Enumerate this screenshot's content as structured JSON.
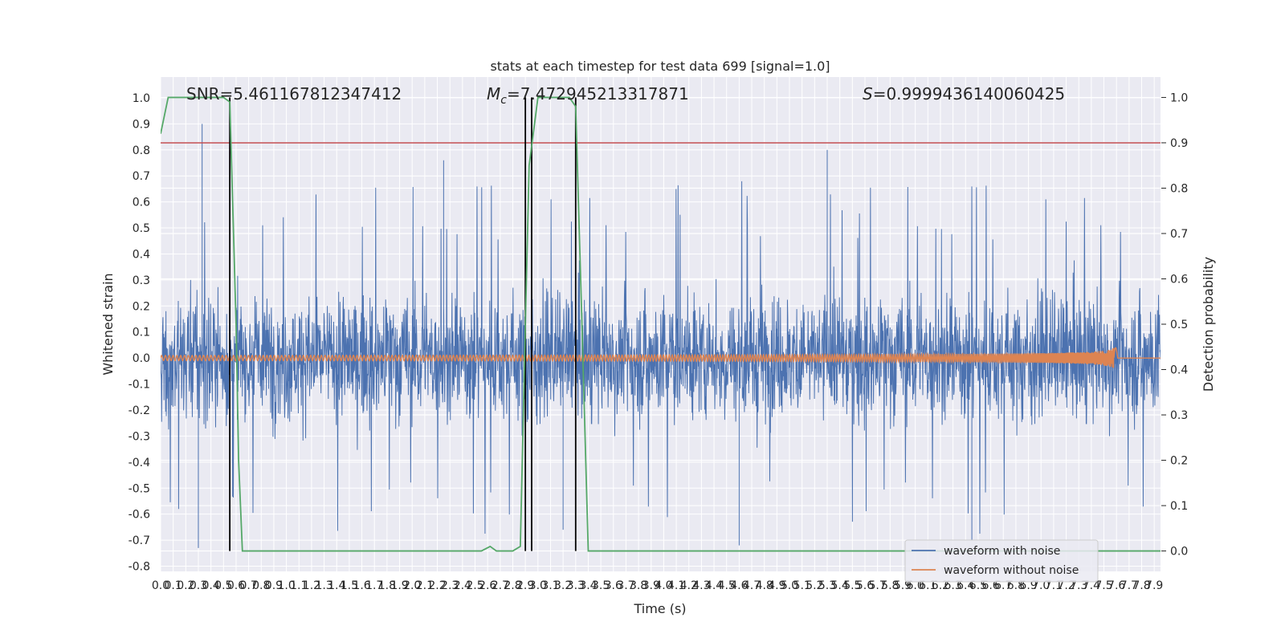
{
  "chart_data": {
    "type": "line",
    "title": "stats at each timestep for test data 699 [signal=1.0]",
    "xlabel": "Time (s)",
    "ylabel": "Whitened strain",
    "y2label": "Detection probability",
    "xlim": [
      0.0,
      7.95
    ],
    "ylim": [
      -0.82,
      1.08
    ],
    "y2lim": [
      -0.045,
      1.045
    ],
    "xticks": [
      "0.0",
      "0.1",
      "0.2",
      "0.3",
      "0.4",
      "0.5",
      "0.6",
      "0.7",
      "0.8",
      "0.9",
      "1.0",
      "1.1",
      "1.2",
      "1.3",
      "1.4",
      "1.5",
      "1.6",
      "1.7",
      "1.8",
      "1.9",
      "2.0",
      "2.1",
      "2.2",
      "2.3",
      "2.4",
      "2.5",
      "2.6",
      "2.7",
      "2.8",
      "2.9",
      "3.0",
      "3.1",
      "3.2",
      "3.3",
      "3.4",
      "3.5",
      "3.6",
      "3.7",
      "3.8",
      "3.9",
      "4.0",
      "4.1",
      "4.2",
      "4.3",
      "4.4",
      "4.5",
      "4.6",
      "4.7",
      "4.8",
      "4.9",
      "5.0",
      "5.1",
      "5.2",
      "5.3",
      "5.4",
      "5.5",
      "5.6",
      "5.7",
      "5.8",
      "5.9",
      "6.0",
      "6.1",
      "6.2",
      "6.3",
      "6.4",
      "6.5",
      "6.6",
      "6.7",
      "6.8",
      "6.9",
      "7.0",
      "7.1",
      "7.2",
      "7.3",
      "7.4",
      "7.5",
      "7.6",
      "7.7",
      "7.8",
      "7.9"
    ],
    "yticks": [
      "-0.8",
      "-0.7",
      "-0.6",
      "-0.5",
      "-0.4",
      "-0.3",
      "-0.2",
      "-0.1",
      "0.0",
      "0.1",
      "0.2",
      "0.3",
      "0.4",
      "0.5",
      "0.6",
      "0.7",
      "0.8",
      "0.9",
      "1.0"
    ],
    "y2ticks": [
      "0.0",
      "0.1",
      "0.2",
      "0.3",
      "0.4",
      "0.5",
      "0.6",
      "0.7",
      "0.8",
      "0.9",
      "1.0"
    ],
    "grid": true,
    "legend_position": "lower-right",
    "annotations": {
      "snr": "SNR=5.461167812347412",
      "mc_symbol": "M",
      "mc_sub": "c",
      "mc_value": "=7.472945213317871",
      "s_symbol": "S",
      "s_value": "=0.9999436140060425"
    },
    "threshold_y2": 0.9,
    "vlines_x": [
      0.55,
      2.9,
      2.95,
      3.3
    ],
    "series": [
      {
        "name": "waveform with noise",
        "color": "#4c72b0",
        "description_envelope": {
          "typical_abs": 0.3,
          "spike_max": 0.9,
          "spike_min": -0.74
        }
      },
      {
        "name": "waveform without noise",
        "color": "#dd8452",
        "chirp": {
          "start_amp": 0.01,
          "peak_amp": 0.1,
          "peak_t": 7.58,
          "end_t": 7.95
        }
      },
      {
        "name": "",
        "color": "#55a868",
        "axis": "y2",
        "x": [
          0.0,
          0.06,
          0.1,
          0.2,
          0.3,
          0.5,
          0.55,
          0.6,
          0.62,
          0.65,
          0.7,
          1.0,
          2.0,
          2.5,
          2.55,
          2.62,
          2.67,
          2.72,
          2.8,
          2.86,
          2.9,
          2.93,
          3.0,
          3.05,
          3.1,
          3.2,
          3.25,
          3.3,
          3.35,
          3.38,
          3.4,
          3.5,
          4.0,
          5.0,
          6.0,
          7.0,
          7.95
        ],
        "y": [
          0.92,
          1.0,
          1.0,
          1.0,
          1.0,
          1.0,
          0.99,
          0.5,
          0.2,
          0.0,
          0.0,
          0.0,
          0.0,
          0.0,
          0.0,
          0.01,
          0.0,
          0.0,
          0.0,
          0.01,
          0.5,
          0.85,
          1.0,
          1.0,
          1.0,
          1.0,
          1.0,
          0.98,
          0.5,
          0.2,
          0.0,
          0.0,
          0.0,
          0.0,
          0.0,
          0.0,
          0.0
        ]
      }
    ],
    "colors": {
      "background": "#eaeaf2",
      "grid": "#ffffff",
      "threshold": "#c44e52",
      "vline": "#000000"
    }
  }
}
